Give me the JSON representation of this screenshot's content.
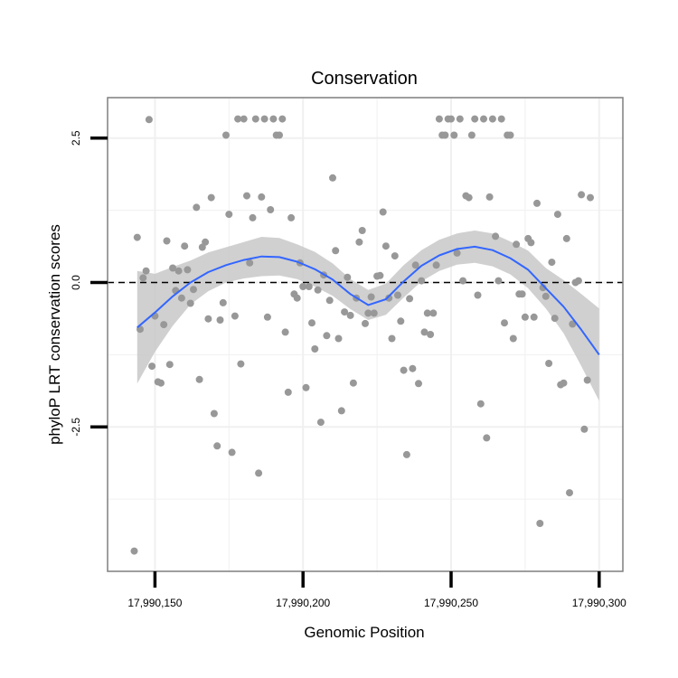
{
  "chart_data": {
    "type": "scatter",
    "title": "Conservation",
    "xlabel": "Genomic Position",
    "ylabel": "phyloP LRT conservation scores",
    "xlim": [
      17990134,
      17990308
    ],
    "ylim": [
      -5.0,
      3.2
    ],
    "x_ticks": [
      17990150,
      17990200,
      17990250,
      17990300
    ],
    "x_tick_labels": [
      "17,990,150",
      "17,990,200",
      "17,990,250",
      "17,990,300"
    ],
    "y_ticks": [
      -2.5,
      0.0,
      2.5
    ],
    "y_tick_labels": [
      "-2.5",
      "0.0",
      "2.5"
    ],
    "grid": true,
    "reference_line": {
      "y": 0.0,
      "style": "dashed"
    },
    "colors": {
      "points": "#989898",
      "smooth": "#3366FF",
      "band": "#c8c8c8",
      "panel_border": "#7f7f7f",
      "grid": "#f0f0f0"
    },
    "points": [
      [
        17990144,
        0.78
      ],
      [
        17990145,
        -0.81
      ],
      [
        17990146,
        0.08
      ],
      [
        17990147,
        0.2
      ],
      [
        17990148,
        2.82
      ],
      [
        17990149,
        -1.45
      ],
      [
        17990150,
        -0.58
      ],
      [
        17990151,
        -1.72
      ],
      [
        17990152,
        -1.74
      ],
      [
        17990153,
        -0.73
      ],
      [
        17990154,
        0.72
      ],
      [
        17990155,
        -1.42
      ],
      [
        17990156,
        0.25
      ],
      [
        17990157,
        -0.14
      ],
      [
        17990158,
        0.2
      ],
      [
        17990159,
        -0.27
      ],
      [
        17990160,
        0.63
      ],
      [
        17990161,
        0.22
      ],
      [
        17990162,
        -0.36
      ],
      [
        17990163,
        -0.12
      ],
      [
        17990164,
        1.3
      ],
      [
        17990165,
        -1.68
      ],
      [
        17990166,
        0.61
      ],
      [
        17990167,
        0.7
      ],
      [
        17990168,
        -0.63
      ],
      [
        17990169,
        1.47
      ],
      [
        17990170,
        -2.27
      ],
      [
        17990171,
        -2.83
      ],
      [
        17990172,
        -0.65
      ],
      [
        17990173,
        -0.35
      ],
      [
        17990174,
        2.55
      ],
      [
        17990175,
        1.18
      ],
      [
        17990176,
        -2.94
      ],
      [
        17990177,
        -0.58
      ],
      [
        17990178,
        2.83
      ],
      [
        17990179,
        -1.41
      ],
      [
        17990180,
        2.83
      ],
      [
        17990181,
        1.5
      ],
      [
        17990182,
        0.34
      ],
      [
        17990183,
        1.12
      ],
      [
        17990184,
        2.83
      ],
      [
        17990185,
        -3.3
      ],
      [
        17990186,
        1.48
      ],
      [
        17990187,
        2.83
      ],
      [
        17990188,
        -0.6
      ],
      [
        17990189,
        1.26
      ],
      [
        17990190,
        2.83
      ],
      [
        17990191,
        2.55
      ],
      [
        17990192,
        2.55
      ],
      [
        17990193,
        2.83
      ],
      [
        17990194,
        -0.86
      ],
      [
        17990195,
        -1.9
      ],
      [
        17990196,
        1.12
      ],
      [
        17990197,
        -0.2
      ],
      [
        17990198,
        -0.27
      ],
      [
        17990199,
        0.34
      ],
      [
        17990200,
        -0.07
      ],
      [
        17990201,
        -1.82
      ],
      [
        17990202,
        -0.07
      ],
      [
        17990203,
        -0.7
      ],
      [
        17990204,
        -1.15
      ],
      [
        17990205,
        -0.13
      ],
      [
        17990206,
        -2.42
      ],
      [
        17990207,
        0.13
      ],
      [
        17990208,
        -0.92
      ],
      [
        17990209,
        -0.31
      ],
      [
        17990210,
        1.81
      ],
      [
        17990211,
        0.55
      ],
      [
        17990212,
        -0.97
      ],
      [
        17990213,
        -2.22
      ],
      [
        17990214,
        -0.51
      ],
      [
        17990215,
        0.09
      ],
      [
        17990216,
        -0.57
      ],
      [
        17990217,
        -1.74
      ],
      [
        17990218,
        -0.27
      ],
      [
        17990219,
        0.7
      ],
      [
        17990220,
        0.9
      ],
      [
        17990221,
        -0.71
      ],
      [
        17990222,
        -0.53
      ],
      [
        17990223,
        -0.25
      ],
      [
        17990224,
        -0.53
      ],
      [
        17990225,
        0.11
      ],
      [
        17990226,
        0.12
      ],
      [
        17990227,
        1.22
      ],
      [
        17990228,
        0.63
      ],
      [
        17990229,
        -0.27
      ],
      [
        17990230,
        -0.97
      ],
      [
        17990231,
        0.46
      ],
      [
        17990232,
        -0.22
      ],
      [
        17990233,
        -0.67
      ],
      [
        17990234,
        -1.52
      ],
      [
        17990235,
        -2.98
      ],
      [
        17990236,
        -0.28
      ],
      [
        17990237,
        -1.49
      ],
      [
        17990238,
        0.3
      ],
      [
        17990239,
        -1.75
      ],
      [
        17990240,
        0.03
      ],
      [
        17990241,
        -0.86
      ],
      [
        17990242,
        -0.53
      ],
      [
        17990243,
        -0.9
      ],
      [
        17990244,
        -0.53
      ],
      [
        17990245,
        0.3
      ],
      [
        17990246,
        2.83
      ],
      [
        17990247,
        2.55
      ],
      [
        17990248,
        2.55
      ],
      [
        17990249,
        2.83
      ],
      [
        17990250,
        2.83
      ],
      [
        17990251,
        2.55
      ],
      [
        17990252,
        0.51
      ],
      [
        17990253,
        2.83
      ],
      [
        17990254,
        0.03
      ],
      [
        17990255,
        1.5
      ],
      [
        17990256,
        1.47
      ],
      [
        17990257,
        2.55
      ],
      [
        17990258,
        2.83
      ],
      [
        17990259,
        -0.22
      ],
      [
        17990260,
        -2.1
      ],
      [
        17990261,
        2.83
      ],
      [
        17990262,
        -2.69
      ],
      [
        17990263,
        1.48
      ],
      [
        17990264,
        2.83
      ],
      [
        17990265,
        0.8
      ],
      [
        17990266,
        0.03
      ],
      [
        17990267,
        2.83
      ],
      [
        17990268,
        -0.7
      ],
      [
        17990269,
        2.55
      ],
      [
        17990270,
        2.55
      ],
      [
        17990271,
        -0.97
      ],
      [
        17990272,
        0.66
      ],
      [
        17990273,
        -0.2
      ],
      [
        17990274,
        -0.2
      ],
      [
        17990275,
        -0.6
      ],
      [
        17990276,
        0.76
      ],
      [
        17990277,
        0.69
      ],
      [
        17990278,
        -0.6
      ],
      [
        17990279,
        1.37
      ],
      [
        17990280,
        -4.17
      ],
      [
        17990281,
        -0.09
      ],
      [
        17990282,
        -0.24
      ],
      [
        17990283,
        -1.4
      ],
      [
        17990284,
        0.35
      ],
      [
        17990285,
        -0.62
      ],
      [
        17990286,
        1.18
      ],
      [
        17990287,
        -1.77
      ],
      [
        17990288,
        -1.74
      ],
      [
        17990289,
        0.76
      ],
      [
        17990290,
        -3.64
      ],
      [
        17990291,
        -0.72
      ],
      [
        17990292,
        0.0
      ],
      [
        17990293,
        0.03
      ],
      [
        17990294,
        1.52
      ],
      [
        17990295,
        -2.54
      ],
      [
        17990296,
        -1.69
      ],
      [
        17990297,
        1.47
      ],
      [
        17990143,
        -4.65
      ]
    ],
    "smooth_fit": {
      "x": [
        17990144,
        17990150,
        17990156,
        17990162,
        17990168,
        17990174,
        17990180,
        17990186,
        17990192,
        17990198,
        17990204,
        17990210,
        17990216,
        17990222,
        17990228,
        17990234,
        17990240,
        17990246,
        17990252,
        17990258,
        17990264,
        17990270,
        17990276,
        17990282,
        17990288,
        17990294,
        17990300
      ],
      "y": [
        -0.78,
        -0.52,
        -0.24,
        0.0,
        0.18,
        0.3,
        0.39,
        0.45,
        0.44,
        0.36,
        0.23,
        0.05,
        -0.2,
        -0.39,
        -0.29,
        0.02,
        0.29,
        0.47,
        0.58,
        0.62,
        0.56,
        0.42,
        0.22,
        -0.1,
        -0.42,
        -0.82,
        -1.25
      ],
      "lower": [
        -1.75,
        -1.2,
        -0.75,
        -0.38,
        -0.15,
        0.0,
        0.07,
        0.11,
        0.12,
        0.06,
        -0.07,
        -0.23,
        -0.46,
        -0.65,
        -0.56,
        -0.26,
        0.02,
        0.2,
        0.31,
        0.34,
        0.28,
        0.14,
        -0.1,
        -0.45,
        -0.88,
        -1.45,
        -2.05
      ],
      "upper": [
        0.2,
        0.15,
        0.27,
        0.38,
        0.52,
        0.61,
        0.7,
        0.79,
        0.77,
        0.66,
        0.53,
        0.33,
        0.06,
        -0.13,
        -0.02,
        0.3,
        0.56,
        0.74,
        0.85,
        0.9,
        0.85,
        0.71,
        0.55,
        0.25,
        0.04,
        -0.2,
        -0.45
      ]
    }
  }
}
